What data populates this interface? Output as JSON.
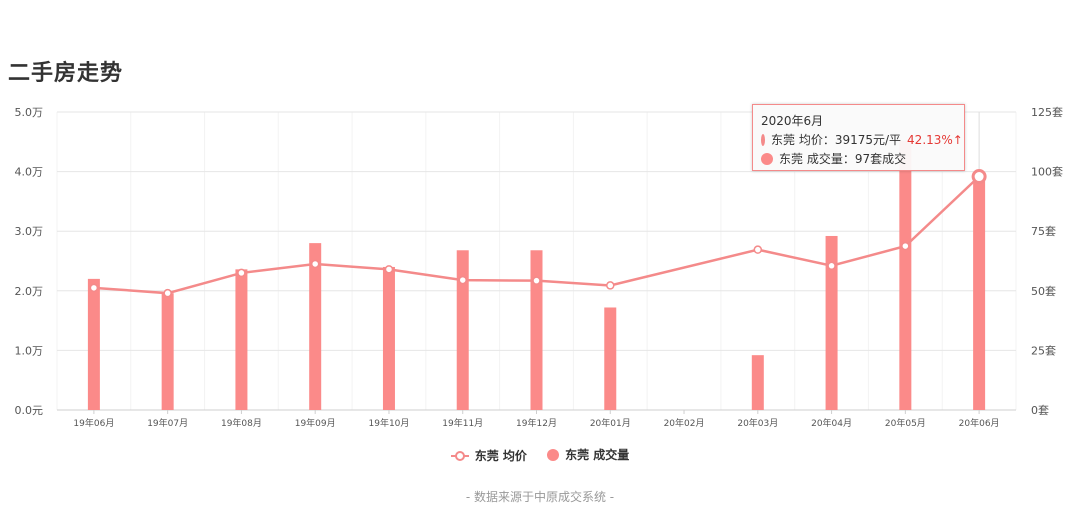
{
  "title": "二手房走势",
  "chart_data": {
    "type": "bar+line",
    "categories": [
      "19年06月",
      "19年07月",
      "19年08月",
      "19年09月",
      "19年10月",
      "19年11月",
      "19年12月",
      "20年01月",
      "20年02月",
      "20年03月",
      "20年04月",
      "20年05月",
      "20年06月"
    ],
    "series": [
      {
        "name": "东莞 成交量",
        "type": "bar",
        "axis": "right",
        "values": [
          55,
          49,
          59,
          70,
          60,
          67,
          67,
          43,
          null,
          23,
          73,
          113,
          97
        ]
      },
      {
        "name": "东莞 均价",
        "type": "line",
        "axis": "left",
        "values": [
          20500,
          19600,
          23000,
          24500,
          23600,
          21800,
          21700,
          20900,
          null,
          26900,
          24200,
          27500,
          39175
        ]
      }
    ],
    "y_left": {
      "min": 0,
      "max": 50000,
      "ticks": [
        "0.0元",
        "1.0万",
        "2.0万",
        "3.0万",
        "4.0万",
        "5.0万"
      ]
    },
    "y_right": {
      "min": 0,
      "max": 125,
      "ticks": [
        "0套",
        "25套",
        "50套",
        "75套",
        "100套",
        "125套"
      ]
    },
    "grid": true,
    "legend_position": "bottom",
    "colors": {
      "bar": "#fb8a89",
      "line": "#f48a8a"
    }
  },
  "legend": {
    "price_label": "东莞 均价",
    "volume_label": "东莞 成交量"
  },
  "tooltip": {
    "title": "2020年6月",
    "price_text": "东莞 均价：39175元/平",
    "price_change": "42.13%↑",
    "volume_text": "东莞 成交量：97套成交"
  },
  "source": "- 数据来源于中原成交系统 -"
}
